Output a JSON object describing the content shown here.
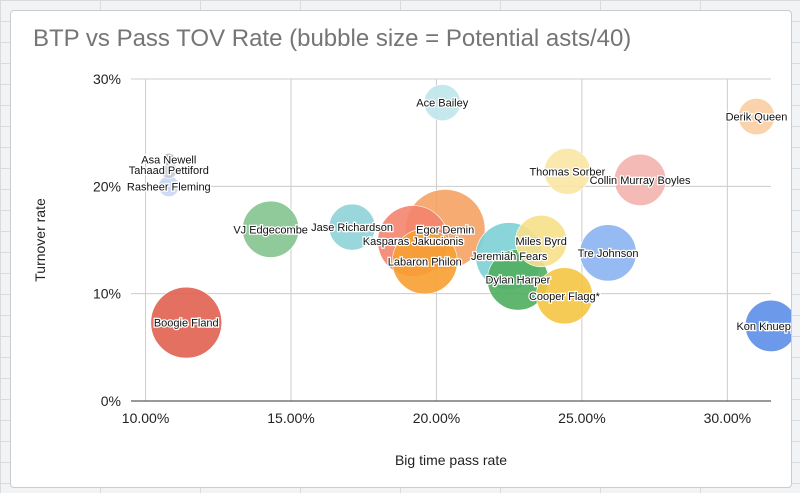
{
  "chart_data": {
    "type": "bubble",
    "title": "BTP vs Pass TOV Rate (bubble size = Potential asts/40)",
    "xlabel": "Big time pass rate",
    "ylabel": "Turnover rate",
    "xlim": [
      0.095,
      0.315
    ],
    "ylim": [
      0,
      0.3
    ],
    "xticks": [
      "10.00%",
      "15.00%",
      "20.00%",
      "25.00%",
      "30.00%"
    ],
    "yticks": [
      "0%",
      "10%",
      "20%",
      "30%"
    ],
    "grid": true,
    "points": [
      {
        "name": "Asa Newell",
        "x": 0.108,
        "y": 0.225,
        "size": 0.3,
        "color": "#b0b7c2"
      },
      {
        "name": "Tahaad Pettiford",
        "x": 0.108,
        "y": 0.215,
        "size": 0.5,
        "color": "#c5cbd3"
      },
      {
        "name": "Rasheer Fleming",
        "x": 0.108,
        "y": 0.2,
        "size": 0.8,
        "color": "#c8d7f3"
      },
      {
        "name": "Boogie Fland",
        "x": 0.114,
        "y": 0.073,
        "size": 9.5,
        "color": "#e06150"
      },
      {
        "name": "VJ Edgecombe",
        "x": 0.143,
        "y": 0.16,
        "size": 6.0,
        "color": "#84c48f"
      },
      {
        "name": "Jase Richardson",
        "x": 0.171,
        "y": 0.162,
        "size": 4.0,
        "color": "#8fd3d8"
      },
      {
        "name": "Ace Bailey",
        "x": 0.202,
        "y": 0.278,
        "size": 2.5,
        "color": "#bfe6ea"
      },
      {
        "name": "Egor Demin",
        "x": 0.203,
        "y": 0.16,
        "size": 12.0,
        "color": "#f5a263"
      },
      {
        "name": "Kasparas Jakucionis",
        "x": 0.192,
        "y": 0.149,
        "size": 9.5,
        "color": "#f4846e"
      },
      {
        "name": "Labaron Philon",
        "x": 0.196,
        "y": 0.13,
        "size": 8.0,
        "color": "#f7a031"
      },
      {
        "name": "Jeremiah Fears",
        "x": 0.225,
        "y": 0.135,
        "size": 8.5,
        "color": "#7dd0d6"
      },
      {
        "name": "Dylan Harper",
        "x": 0.228,
        "y": 0.113,
        "size": 7.0,
        "color": "#4fae5e"
      },
      {
        "name": "Miles Byrd",
        "x": 0.236,
        "y": 0.149,
        "size": 5.0,
        "color": "#f7e08a"
      },
      {
        "name": "Cooper Flagg*",
        "x": 0.244,
        "y": 0.098,
        "size": 6.0,
        "color": "#f5c543"
      },
      {
        "name": "Thomas Sorber",
        "x": 0.245,
        "y": 0.214,
        "size": 4.0,
        "color": "#fae6a3"
      },
      {
        "name": "Collin Murray Boyles",
        "x": 0.27,
        "y": 0.206,
        "size": 5.0,
        "color": "#f3b3ae"
      },
      {
        "name": "Tre Johnson",
        "x": 0.259,
        "y": 0.138,
        "size": 6.0,
        "color": "#8bb3f1"
      },
      {
        "name": "Derik Queen",
        "x": 0.31,
        "y": 0.265,
        "size": 2.5,
        "color": "#f9cda3"
      },
      {
        "name": "Kon Knueppel",
        "x": 0.315,
        "y": 0.07,
        "size": 5.0,
        "color": "#5d8ee8"
      }
    ]
  }
}
